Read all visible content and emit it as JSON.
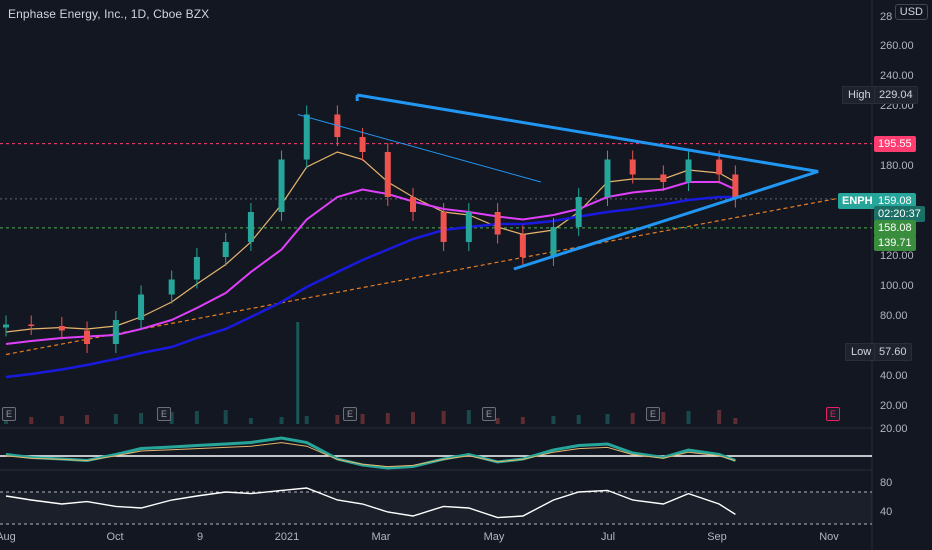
{
  "header": {
    "title": "Enphase Energy, Inc., 1D, Cboe BZX",
    "currency": "USD"
  },
  "colors": {
    "background": "#131722",
    "up": "#26a69a",
    "down": "#ef5350",
    "triangle": "#2196f3",
    "ma_orange": "#e6b46b",
    "ma_magenta": "#e040fb",
    "ma_navy": "#1a1adf",
    "support_dashed": "#e67e22",
    "resistance_line": "#ff3d71",
    "green_dashed": "#4caf50"
  },
  "price_axis": {
    "ticks": [
      "260.00",
      "240.00",
      "220.00",
      "180.00",
      "140.00",
      "120.00",
      "100.00",
      "80.00",
      "60.00",
      "40.00",
      "20.00"
    ],
    "ticks_values": [
      260,
      240,
      220,
      180,
      140,
      120,
      100,
      80,
      60,
      40,
      20
    ],
    "partial_top": "28",
    "macd_tick": "20.00",
    "rsi_ticks": [
      "80",
      "40"
    ]
  },
  "time_axis": {
    "labels": [
      "Aug",
      "Oct",
      "9",
      "2021",
      "Mar",
      "May",
      "Jul",
      "Sep",
      "Nov"
    ]
  },
  "price_tags": {
    "high_label": "High",
    "high_value": "229.04",
    "low_label": "Low",
    "low_value": "57.60",
    "resistance_value": "195.55",
    "symbol": "ENPH",
    "last_price": "159.08",
    "countdown": "02:20:37",
    "level_green": "158.08",
    "level_green2": "139.71"
  },
  "earnings_marker": "E",
  "chart_data": {
    "type": "line",
    "title": "Enphase Energy, Inc., 1D, Cboe BZX",
    "xlabel": "",
    "ylabel": "",
    "ylim": [
      10,
      285
    ],
    "series": [
      {
        "x": [
          "2020-08-01",
          "2020-08-15",
          "2020-09-01",
          "2020-09-15",
          "2020-10-01",
          "2020-10-15",
          "2020-11-01",
          "2020-11-15",
          "2020-12-01",
          "2020-12-15",
          "2021-01-01",
          "2021-01-15",
          "2021-02-01",
          "2021-02-15",
          "2021-03-01",
          "2021-03-15",
          "2021-04-01",
          "2021-04-15",
          "2021-05-01",
          "2021-05-15",
          "2021-06-01",
          "2021-06-15",
          "2021-07-01",
          "2021-07-15",
          "2021-08-01",
          "2021-08-15",
          "2021-09-01",
          "2021-09-10"
        ],
        "values": [
          75,
          74,
          71,
          62,
          78,
          95,
          105,
          120,
          130,
          150,
          185,
          215,
          200,
          190,
          160,
          150,
          130,
          150,
          135,
          120,
          140,
          160,
          185,
          175,
          170,
          185,
          175,
          159
        ]
      }
    ],
    "moving_averages": [
      {
        "values": [
          70,
          72,
          73,
          72,
          74,
          80,
          90,
          102,
          115,
          130,
          155,
          180,
          190,
          185,
          170,
          160,
          150,
          148,
          140,
          135,
          138,
          150,
          170,
          172,
          172,
          178,
          176,
          170
        ]
      },
      {
        "values": [
          62,
          64,
          66,
          67,
          68,
          72,
          78,
          86,
          96,
          110,
          125,
          145,
          160,
          165,
          162,
          157,
          152,
          150,
          147,
          145,
          148,
          152,
          160,
          163,
          165,
          170,
          170,
          165
        ]
      },
      {
        "values": [
          40,
          42,
          45,
          48,
          52,
          56,
          60,
          66,
          72,
          80,
          90,
          100,
          110,
          118,
          125,
          132,
          138,
          140,
          142,
          142,
          144,
          147,
          150,
          152,
          155,
          158,
          160,
          160
        ]
      }
    ],
    "drawings": {
      "triangle_upper": [
        [
          "2021-02-12",
          228
        ],
        [
          "2021-10-26",
          177
        ]
      ],
      "triangle_lower": [
        [
          "2021-05-10",
          112
        ],
        [
          "2021-10-26",
          177
        ]
      ],
      "triangle_inner": [
        [
          "2021-01-10",
          215
        ],
        [
          "2021-05-25",
          170
        ]
      ],
      "long_support": [
        [
          "2020-08-01",
          55
        ],
        [
          "2021-11-10",
          160
        ]
      ],
      "resistance_level": 195.55,
      "green_level": 158.08
    },
    "volume_spike_x": "2021-01-10",
    "rsi": {
      "ylim": [
        30,
        90
      ],
      "upper": 70,
      "lower": 30,
      "values": [
        65,
        60,
        55,
        58,
        52,
        50,
        60,
        65,
        70,
        68,
        72,
        75,
        60,
        55,
        45,
        40,
        52,
        50,
        38,
        40,
        60,
        70,
        72,
        60,
        55,
        68,
        55,
        42
      ]
    },
    "macd": {
      "values": [
        0.5,
        -0.5,
        -1.0,
        -1.5,
        0.5,
        2.5,
        3.0,
        3.5,
        4.0,
        4.5,
        6.0,
        4.5,
        -1.0,
        -3.0,
        -4.0,
        -3.5,
        -1.0,
        0.5,
        -2.0,
        -1.0,
        2.0,
        3.5,
        4.0,
        1.0,
        -0.5,
        2.0,
        0.5,
        -1.5
      ]
    }
  }
}
